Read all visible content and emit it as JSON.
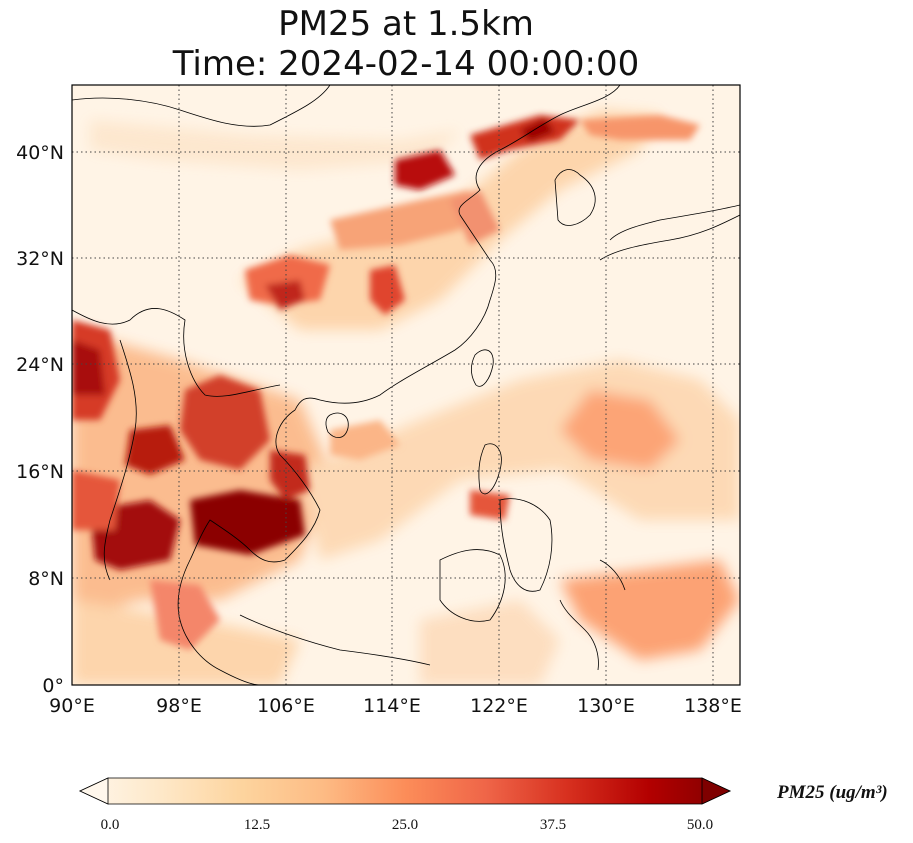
{
  "title": {
    "line1": "PM25 at 1.5km",
    "line2": "Time: 2024-02-14 00:00:00"
  },
  "map": {
    "lon_range": [
      90,
      140
    ],
    "lat_range": [
      0,
      44
    ],
    "lon_ticks": [
      "90°E",
      "98°E",
      "106°E",
      "114°E",
      "122°E",
      "130°E",
      "138°E"
    ],
    "lat_ticks": [
      "0°",
      "8°N",
      "16°N",
      "24°N",
      "32°N",
      "40°N"
    ],
    "gridlines": "dotted",
    "colormap": "OrRd",
    "coastline_color": "#000000"
  },
  "colorbar": {
    "label": "PM25 (ug/m³)",
    "ticks": [
      "0.0",
      "12.5",
      "25.0",
      "37.5",
      "50.0"
    ],
    "min": 0,
    "max": 50,
    "extend": "both",
    "colors": [
      "#fff7ec",
      "#fee8c8",
      "#fdd49e",
      "#fdbb84",
      "#fc8d59",
      "#ef6548",
      "#d7301f",
      "#b30000",
      "#7f0000"
    ]
  }
}
